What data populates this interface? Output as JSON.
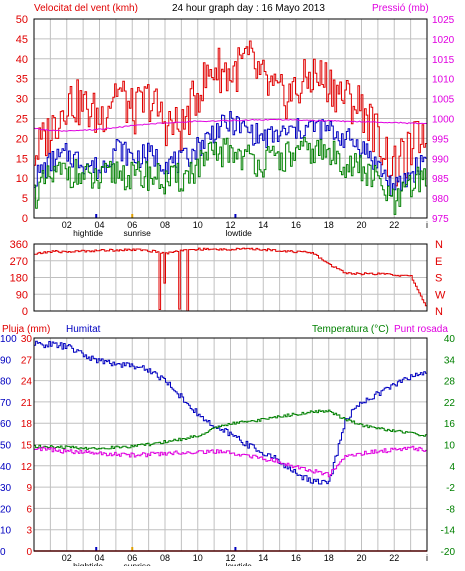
{
  "header": {
    "wind_label": "Velocitat del vent (kmh)",
    "title": "24 hour graph day : 16 Mayo 2013",
    "pressure_label": "Pressió (mb)"
  },
  "colors": {
    "red": "#e00000",
    "darkred": "#b00000",
    "green": "#008000",
    "blue": "#0000c0",
    "magenta": "#e000e0",
    "grid": "#c0c0c0",
    "frame": "#000000"
  },
  "x_ticks": [
    "02",
    "04",
    "06",
    "08",
    "10",
    "12",
    "14",
    "16",
    "18",
    "20",
    "22",
    "i"
  ],
  "x_annotations": [
    "hightide",
    "sunrise",
    "lowtide"
  ],
  "chart_data": [
    {
      "type": "line",
      "title": "24 hour graph day : 16 Mayo 2013",
      "ylabel": "Velocitat del vent (kmh)",
      "ylabel_right": "Pressió (mb)",
      "ylim": [
        0,
        50
      ],
      "ylim_right": [
        975,
        1025
      ],
      "yticks": [
        0,
        5,
        10,
        15,
        20,
        25,
        30,
        35,
        40,
        45,
        50
      ],
      "yticks_right": [
        975,
        980,
        985,
        990,
        995,
        1000,
        1005,
        1010,
        1015,
        1020,
        1025
      ],
      "x": [
        0,
        1,
        2,
        3,
        4,
        5,
        6,
        7,
        8,
        9,
        10,
        11,
        12,
        13,
        14,
        15,
        16,
        17,
        18,
        19,
        20,
        21,
        22,
        23,
        24
      ],
      "series": [
        {
          "axis": "left",
          "color": "#e00000",
          "values": [
            16,
            22,
            30,
            28,
            25,
            33,
            26,
            30,
            24,
            22,
            32,
            38,
            36,
            40,
            34,
            30,
            32,
            36,
            34,
            30,
            28,
            20,
            12,
            17,
            24
          ]
        },
        {
          "axis": "left",
          "color": "#0000c0",
          "values": [
            10,
            14,
            16,
            14,
            12,
            18,
            15,
            16,
            14,
            14,
            18,
            22,
            24,
            22,
            20,
            21,
            22,
            23,
            22,
            20,
            18,
            13,
            7,
            11,
            16
          ]
        },
        {
          "axis": "left",
          "color": "#008000",
          "values": [
            6,
            10,
            12,
            10,
            9,
            12,
            10,
            11,
            9,
            10,
            13,
            16,
            17,
            15,
            14,
            15,
            16,
            17,
            16,
            14,
            12,
            9,
            3,
            8,
            11
          ]
        },
        {
          "axis": "right",
          "color": "#e000e0",
          "values": [
            997.5,
            997,
            996.8,
            997,
            997.3,
            997.7,
            998.2,
            998.6,
            998.9,
            999.1,
            999.3,
            999.4,
            999.5,
            999.6,
            999.7,
            999.7,
            999.6,
            999.5,
            999.4,
            999.3,
            999.2,
            999.1,
            999,
            998.8,
            998.7
          ]
        }
      ]
    },
    {
      "type": "line",
      "ylim": [
        0,
        360
      ],
      "yticks": [
        0,
        90,
        180,
        270,
        360
      ],
      "yticks_right": [
        "N",
        "W",
        "S",
        "E",
        "N"
      ],
      "x": [
        0,
        1,
        2,
        3,
        4,
        5,
        6,
        7,
        8,
        9,
        10,
        11,
        12,
        13,
        14,
        15,
        16,
        17,
        18,
        19,
        20,
        21,
        22,
        23,
        24
      ],
      "series": [
        {
          "color": "#e00000",
          "values": [
            305,
            320,
            318,
            322,
            325,
            328,
            330,
            324,
            310,
            328,
            332,
            330,
            332,
            333,
            330,
            325,
            318,
            312,
            250,
            205,
            200,
            200,
            195,
            185,
            10
          ]
        }
      ]
    },
    {
      "type": "line",
      "ylabel_left_1": "Pluja (mm)",
      "ylabel_left_2": "Humitat",
      "ylabel_right": "Temperatura (°C)Punt rosada",
      "yticks_pluja": [
        0,
        3,
        6,
        9,
        12,
        15,
        18,
        21,
        24,
        27,
        30
      ],
      "yticks_humitat": [
        0,
        10,
        20,
        30,
        40,
        50,
        60,
        70,
        80,
        90,
        100
      ],
      "yticks_temp": [
        -20,
        -14,
        -8,
        -2,
        4,
        10,
        16,
        22,
        28,
        34,
        40
      ],
      "ylim_temp": [
        -20,
        40
      ],
      "ylim_humitat": [
        0,
        100
      ],
      "x": [
        0,
        1,
        2,
        3,
        4,
        5,
        6,
        7,
        8,
        9,
        10,
        11,
        12,
        13,
        14,
        15,
        16,
        17,
        18,
        19,
        20,
        21,
        22,
        23,
        24
      ],
      "series": [
        {
          "axis": "humitat",
          "color": "#0000c0",
          "values": [
            97,
            97,
            96,
            92,
            89,
            88,
            87,
            85,
            80,
            72,
            64,
            58,
            55,
            50,
            46,
            42,
            36,
            33,
            32,
            62,
            70,
            74,
            78,
            82,
            84
          ]
        },
        {
          "axis": "temp",
          "color": "#008000",
          "values": [
            9.5,
            9.3,
            9.2,
            9.0,
            9.0,
            9.2,
            9.5,
            10,
            10.8,
            11.5,
            12.5,
            14.5,
            16,
            16.5,
            17,
            18,
            18.5,
            19.2,
            19.5,
            17,
            15.5,
            14.5,
            13.8,
            13.2,
            12.5
          ]
        },
        {
          "axis": "temp",
          "color": "#e000e0",
          "values": [
            9,
            8.5,
            8,
            7.8,
            7.5,
            7.2,
            7,
            7.2,
            7.5,
            7.7,
            8,
            8,
            7.6,
            6.8,
            6.0,
            5.0,
            3.8,
            2.5,
            1.5,
            6.5,
            7.5,
            8,
            8.5,
            9,
            8.5
          ]
        },
        {
          "axis": "temp",
          "color": "#e00000",
          "values": [
            -20,
            -20,
            -20,
            -20,
            -20,
            -20,
            -20,
            -20,
            -20,
            -20,
            -20,
            -20,
            -20,
            -20,
            -20,
            -20,
            -20,
            -20,
            -20,
            -20,
            -20,
            -20,
            -20,
            -20,
            -20
          ]
        }
      ]
    }
  ],
  "direction_labels": [
    "N",
    "W",
    "S",
    "E",
    "N"
  ],
  "bottom_labels": {
    "pluja": "Pluja (mm)",
    "humitat": "Humitat",
    "temperatura": "Temperatura (°C)",
    "punt_rosada": "Punt rosada"
  }
}
